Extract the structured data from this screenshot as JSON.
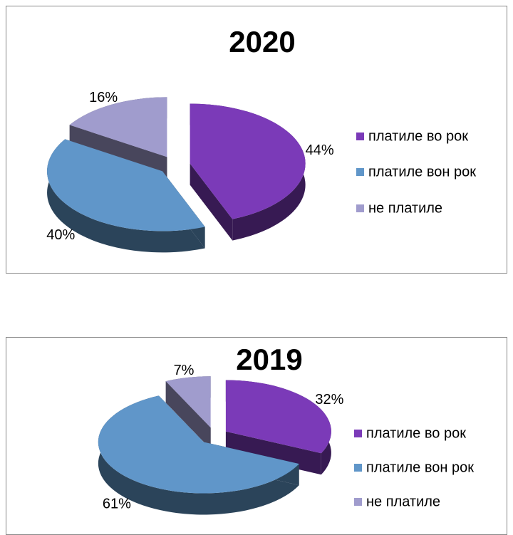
{
  "chart_data": [
    {
      "type": "pie",
      "title": "2020",
      "categories": [
        "платиле во рок",
        "платиле вон рок",
        "не платиле"
      ],
      "values": [
        44,
        40,
        16
      ],
      "value_labels": [
        "44%",
        "40%",
        "16%"
      ],
      "colors": [
        "#7b3ab8",
        "#6096c9",
        "#a09ccd"
      ]
    },
    {
      "type": "pie",
      "title": "2019",
      "categories": [
        "платиле во рок",
        "платиле вон рок",
        "не платиле"
      ],
      "values": [
        32,
        61,
        7
      ],
      "value_labels": [
        "32%",
        "61%",
        "7%"
      ],
      "colors": [
        "#7b3ab8",
        "#6096c9",
        "#a09ccd"
      ]
    }
  ]
}
